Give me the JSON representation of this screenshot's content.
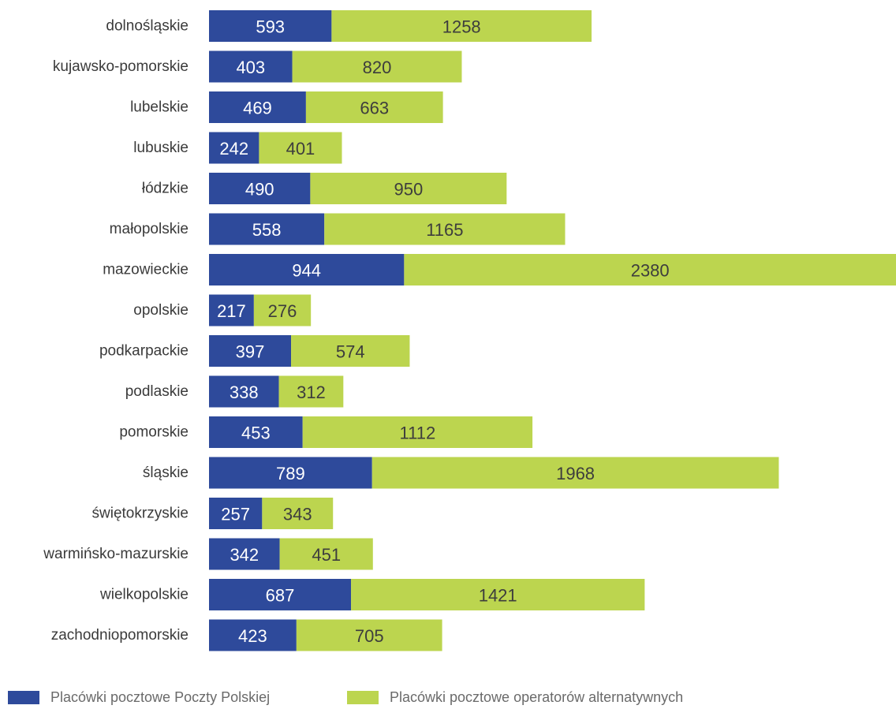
{
  "chart_data": {
    "type": "bar",
    "orientation": "horizontal",
    "stacked": true,
    "categories": [
      "dolnośląskie",
      "kujawsko-pomorskie",
      "lubelskie",
      "lubuskie",
      "łódzkie",
      "małopolskie",
      "mazowieckie",
      "opolskie",
      "podkarpackie",
      "podlaskie",
      "pomorskie",
      "śląskie",
      "świętokrzyskie",
      "warmińsko-mazurskie",
      "wielkopolskie",
      "zachodniopomorskie"
    ],
    "series": [
      {
        "name": "Placówki pocztowe Poczty Polskiej",
        "color": "#2e4a9b",
        "label_color": "#ffffff",
        "values": [
          593,
          403,
          469,
          242,
          490,
          558,
          944,
          217,
          397,
          338,
          453,
          789,
          257,
          342,
          687,
          423
        ]
      },
      {
        "name": "Placówki pocztowe operatorów alternatywnych",
        "color": "#bcd54f",
        "label_color": "#3d3d3d",
        "values": [
          1258,
          820,
          663,
          401,
          950,
          1165,
          2380,
          276,
          574,
          312,
          1112,
          1968,
          343,
          451,
          1421,
          705
        ]
      }
    ],
    "xlim": [
      0,
      3324
    ],
    "grid": false,
    "legend_position": "bottom"
  }
}
